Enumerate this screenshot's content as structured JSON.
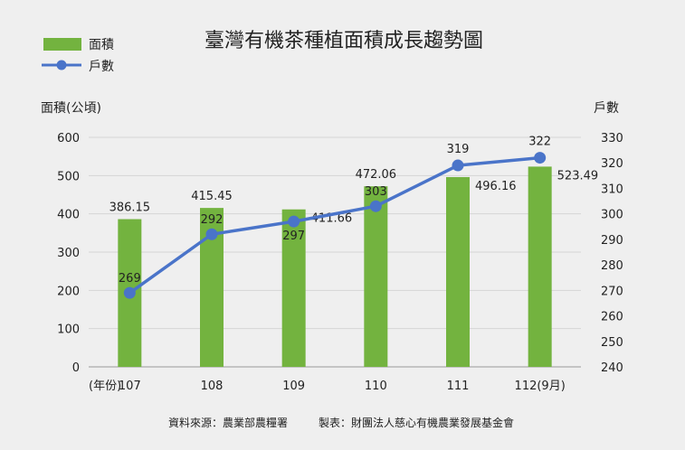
{
  "chart_data": {
    "type": "bar",
    "title": "臺灣有機茶種植面積成長趨勢圖",
    "x_axis_label": "(年份)",
    "categories": [
      "107",
      "108",
      "109",
      "110",
      "111",
      "112(9月)"
    ],
    "y_left_label": "面積(公頃)",
    "y_right_label": "戶數",
    "ylim_left": [
      0,
      600
    ],
    "ylim_right": [
      240,
      330
    ],
    "y_left_ticks": [
      0,
      100,
      200,
      300,
      400,
      500,
      600
    ],
    "y_right_ticks": [
      240,
      250,
      260,
      270,
      280,
      290,
      300,
      310,
      320,
      330
    ],
    "series": [
      {
        "name": "面積",
        "type": "bar",
        "axis": "left",
        "color": "#73b33f",
        "values": [
          386.15,
          415.45,
          411.66,
          472.06,
          496.16,
          523.49
        ],
        "labels": [
          "386.15",
          "415.45",
          "411.66",
          "472.06",
          "496.16",
          "523.49"
        ]
      },
      {
        "name": "戶數",
        "type": "line",
        "axis": "right",
        "color": "#4a74c9",
        "values": [
          269,
          292,
          297,
          303,
          319,
          322
        ],
        "labels": [
          "269",
          "292",
          "297",
          "303",
          "319",
          "322"
        ]
      }
    ],
    "legend_position": "top-left",
    "grid": "horizontal"
  },
  "footer": {
    "source": "資料來源：農業部農糧署",
    "producer": "製表：財團法人慈心有機農業發展基金會"
  }
}
